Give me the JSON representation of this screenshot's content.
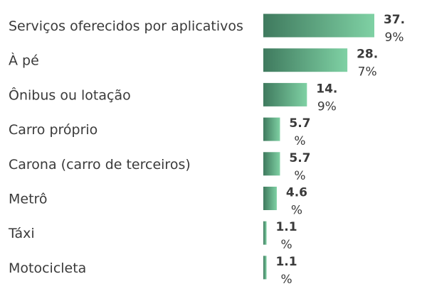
{
  "chart_data": {
    "type": "bar",
    "orientation": "horizontal",
    "categories": [
      "Serviços oferecidos por aplicativos",
      "À pé",
      "Ônibus ou lotação",
      "Carro próprio",
      "Carona (carro de terceiros)",
      "Metrô",
      "Táxi",
      "Motocicleta"
    ],
    "values": [
      37.9,
      28.7,
      14.9,
      5.7,
      5.7,
      4.6,
      1.1,
      1.1
    ],
    "value_labels": [
      [
        "37.",
        "9%"
      ],
      [
        "28.",
        "7%"
      ],
      [
        "14.",
        "9%"
      ],
      [
        "5.7",
        "%"
      ],
      [
        "5.7",
        "%"
      ],
      [
        "4.6",
        "%"
      ],
      [
        "1.1",
        "%"
      ],
      [
        "1.1",
        "%"
      ]
    ],
    "unit": "%",
    "title": "",
    "xlabel": "",
    "ylabel": "",
    "xlim": [
      0,
      37.9
    ],
    "grid": false,
    "legend": "none",
    "colors": {
      "bar_start": "#3f7a5e",
      "bar_end": "#7fd1a4",
      "label": "#3a3a3a",
      "background": "#ffffff"
    }
  }
}
